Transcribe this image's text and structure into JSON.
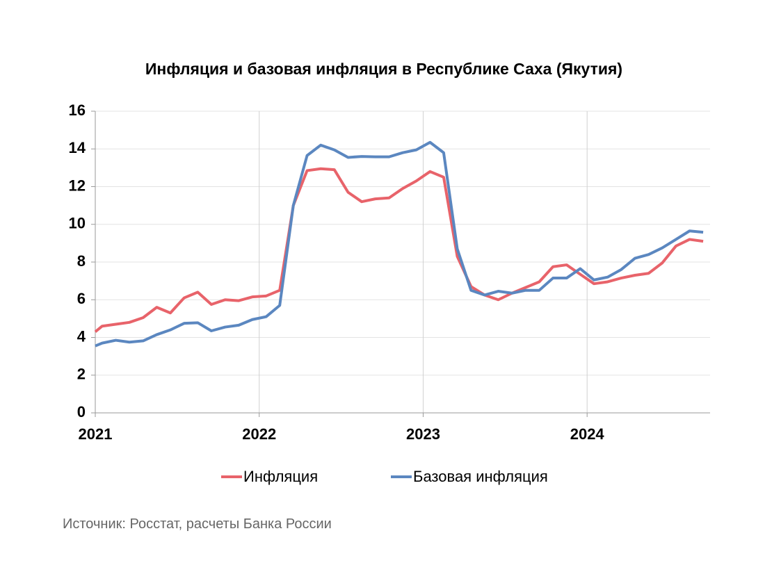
{
  "chart_data": {
    "type": "line",
    "title": "Инфляция и базовая инфляция в Республике Саха (Якутия)",
    "x": [
      2021.0,
      2021.042,
      2021.125,
      2021.208,
      2021.292,
      2021.375,
      2021.458,
      2021.542,
      2021.625,
      2021.708,
      2021.792,
      2021.875,
      2021.958,
      2022.042,
      2022.125,
      2022.208,
      2022.292,
      2022.375,
      2022.458,
      2022.542,
      2022.625,
      2022.708,
      2022.792,
      2022.875,
      2022.958,
      2023.042,
      2023.125,
      2023.208,
      2023.292,
      2023.375,
      2023.458,
      2023.542,
      2023.625,
      2023.708,
      2023.792,
      2023.875,
      2023.958,
      2024.042,
      2024.125,
      2024.208,
      2024.292,
      2024.375,
      2024.458,
      2024.542,
      2024.625,
      2024.708
    ],
    "series": [
      {
        "name": "Инфляция",
        "color": "#e8636a",
        "values": [
          4.3,
          4.6,
          4.7,
          4.8,
          5.05,
          5.6,
          5.3,
          6.1,
          6.4,
          5.75,
          6.0,
          5.95,
          6.15,
          6.2,
          6.5,
          11.0,
          12.85,
          12.95,
          12.9,
          11.7,
          11.2,
          11.35,
          11.4,
          11.9,
          12.3,
          12.8,
          12.5,
          8.3,
          6.7,
          6.25,
          6.0,
          6.35,
          6.65,
          6.95,
          7.75,
          7.85,
          7.35,
          6.85,
          6.95,
          7.15,
          7.3,
          7.4,
          7.95,
          8.85,
          9.2,
          9.1
        ]
      },
      {
        "name": "Базовая инфляция",
        "color": "#5b87c0",
        "values": [
          3.55,
          3.7,
          3.85,
          3.75,
          3.82,
          4.15,
          4.4,
          4.75,
          4.78,
          4.35,
          4.55,
          4.65,
          4.95,
          5.1,
          5.7,
          11.0,
          13.65,
          14.2,
          13.95,
          13.55,
          13.6,
          13.58,
          13.58,
          13.8,
          13.95,
          14.35,
          13.8,
          8.7,
          6.5,
          6.25,
          6.45,
          6.35,
          6.5,
          6.5,
          7.15,
          7.15,
          7.65,
          7.05,
          7.2,
          7.6,
          8.2,
          8.4,
          8.75,
          9.2,
          9.65,
          9.58
        ]
      }
    ],
    "xlim": [
      2021,
      2024.75
    ],
    "xticks": [
      2021,
      2022,
      2023,
      2024
    ],
    "ylim": [
      0,
      16
    ],
    "yticks": [
      0,
      2,
      4,
      6,
      8,
      10,
      12,
      14,
      16
    ],
    "grid": true,
    "legend": "bottom",
    "source": "Источник: Росстат, расчеты Банка России"
  }
}
